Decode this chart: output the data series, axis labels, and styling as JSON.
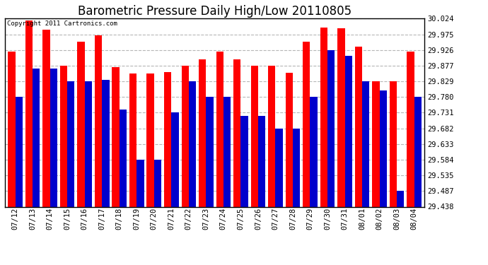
{
  "title": "Barometric Pressure Daily High/Low 20110805",
  "copyright": "Copyright 2011 Cartronics.com",
  "dates": [
    "07/12",
    "07/13",
    "07/14",
    "07/15",
    "07/16",
    "07/17",
    "07/18",
    "07/19",
    "07/20",
    "07/21",
    "07/22",
    "07/23",
    "07/24",
    "07/25",
    "07/26",
    "07/27",
    "07/28",
    "07/29",
    "07/30",
    "07/31",
    "08/01",
    "08/02",
    "08/03",
    "08/04"
  ],
  "highs": [
    29.921,
    30.017,
    29.99,
    29.877,
    29.951,
    29.972,
    29.872,
    29.853,
    29.853,
    29.858,
    29.877,
    29.897,
    29.921,
    29.897,
    29.877,
    29.877,
    29.854,
    29.951,
    29.997,
    29.993,
    29.936,
    29.829,
    29.829,
    29.921
  ],
  "lows": [
    29.781,
    29.868,
    29.868,
    29.829,
    29.829,
    29.834,
    29.741,
    29.584,
    29.585,
    29.731,
    29.829,
    29.78,
    29.78,
    29.721,
    29.721,
    29.682,
    29.682,
    29.78,
    29.926,
    29.907,
    29.829,
    29.799,
    29.487,
    29.78
  ],
  "ymin": 29.438,
  "ymax": 30.024,
  "yticks": [
    29.438,
    29.487,
    29.535,
    29.584,
    29.633,
    29.682,
    29.731,
    29.78,
    29.829,
    29.877,
    29.926,
    29.975,
    30.024
  ],
  "high_color": "#ff0000",
  "low_color": "#0000cc",
  "bg_color": "#ffffff",
  "grid_color": "#b0b0b0",
  "title_fontsize": 12
}
